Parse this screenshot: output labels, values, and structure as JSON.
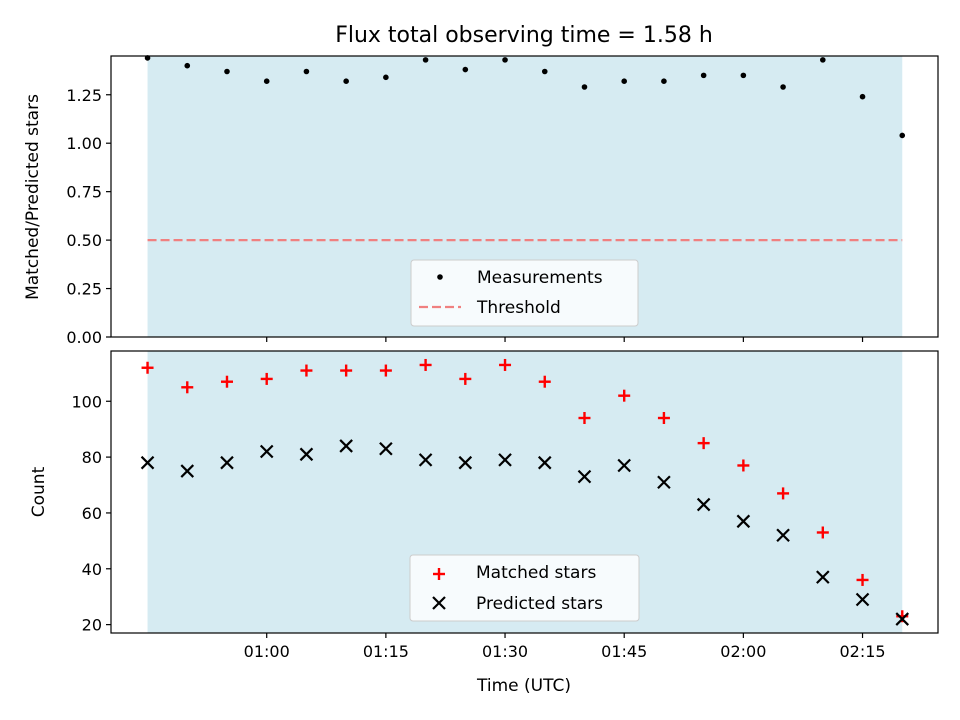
{
  "chart_data": [
    {
      "type": "scatter",
      "title": "Flux total observing time = 1.58 h",
      "xlabel": "",
      "ylabel": "Matched/Predicted stars",
      "ylim": [
        0,
        1.45
      ],
      "yticks": [
        "0.00",
        "0.25",
        "0.50",
        "0.75",
        "1.00",
        "1.25"
      ],
      "shaded_span": {
        "from": "00:45",
        "to": "02:20",
        "color": "#add8e6"
      },
      "threshold": {
        "name": "Threshold",
        "value": 0.5,
        "color": "#f08080",
        "style": "dashed"
      },
      "series": [
        {
          "name": "Measurements",
          "marker": "dot",
          "color": "#000000",
          "x": [
            "00:45",
            "00:50",
            "00:55",
            "01:00",
            "01:05",
            "01:10",
            "01:15",
            "01:20",
            "01:25",
            "01:30",
            "01:35",
            "01:40",
            "01:45",
            "01:50",
            "01:55",
            "02:00",
            "02:05",
            "02:10",
            "02:15",
            "02:20"
          ],
          "values": [
            1.44,
            1.4,
            1.37,
            1.32,
            1.37,
            1.32,
            1.34,
            1.43,
            1.38,
            1.43,
            1.37,
            1.29,
            1.32,
            1.32,
            1.35,
            1.35,
            1.29,
            1.43,
            1.24,
            1.04
          ]
        }
      ],
      "legend": {
        "position": "lower-center"
      },
      "grid": false
    },
    {
      "type": "scatter",
      "title": "",
      "xlabel": "Time (UTC)",
      "ylabel": "Count",
      "ylim": [
        17,
        118
      ],
      "yticks": [
        "20",
        "40",
        "60",
        "80",
        "100"
      ],
      "xticks": [
        "01:00",
        "01:15",
        "01:30",
        "01:45",
        "02:00",
        "02:15"
      ],
      "shaded_span": {
        "from": "00:45",
        "to": "02:20",
        "color": "#add8e6"
      },
      "series": [
        {
          "name": "Matched stars",
          "marker": "plus",
          "color": "#ff0000",
          "x": [
            "00:45",
            "00:50",
            "00:55",
            "01:00",
            "01:05",
            "01:10",
            "01:15",
            "01:20",
            "01:25",
            "01:30",
            "01:35",
            "01:40",
            "01:45",
            "01:50",
            "01:55",
            "02:00",
            "02:05",
            "02:10",
            "02:15",
            "02:20"
          ],
          "values": [
            112,
            105,
            107,
            108,
            111,
            111,
            111,
            113,
            108,
            113,
            107,
            94,
            102,
            94,
            85,
            77,
            67,
            53,
            36,
            23
          ]
        },
        {
          "name": "Predicted stars",
          "marker": "x",
          "color": "#000000",
          "x": [
            "00:45",
            "00:50",
            "00:55",
            "01:00",
            "01:05",
            "01:10",
            "01:15",
            "01:20",
            "01:25",
            "01:30",
            "01:35",
            "01:40",
            "01:45",
            "01:50",
            "01:55",
            "02:00",
            "02:05",
            "02:10",
            "02:15",
            "02:20"
          ],
          "values": [
            78,
            75,
            78,
            82,
            81,
            84,
            83,
            79,
            78,
            79,
            78,
            73,
            77,
            71,
            63,
            57,
            52,
            37,
            29,
            22
          ]
        }
      ],
      "legend": {
        "position": "lower-center"
      },
      "grid": false
    }
  ]
}
